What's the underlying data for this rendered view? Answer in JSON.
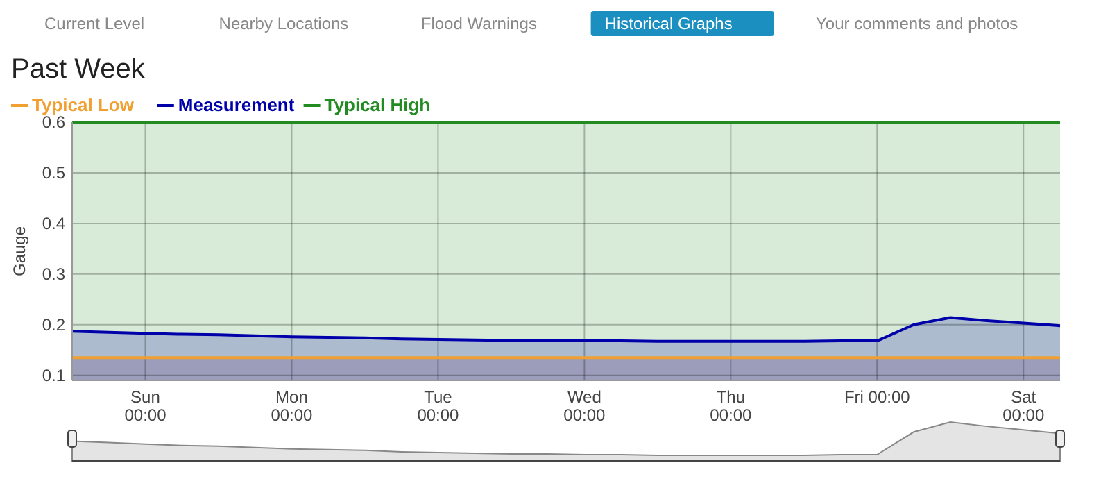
{
  "chart_data": {
    "type": "line",
    "title": "Past Week",
    "ylabel": "Gauge",
    "annotations": [
      "Current Level",
      "Nearby Locations",
      "Flood Warnings",
      "Historical Graphs",
      "Your comments and photos"
    ],
    "categories": [
      null,
      null,
      "Sun\n00:00",
      null,
      null,
      null,
      "Mon\n00:00",
      null,
      null,
      null,
      "Tue\n00:00",
      null,
      null,
      null,
      "Wed\n00:00",
      null,
      null,
      null,
      "Thu\n00:00",
      null,
      null,
      null,
      "Fri 00:00",
      null,
      null,
      null,
      "Sat\n00:00",
      null
    ],
    "ylim": [
      0.09,
      0.6
    ],
    "yticks": [
      0.1,
      0.2,
      0.3,
      0.4,
      0.5,
      0.6
    ],
    "grid": true,
    "legend": "top left",
    "bands": [
      {
        "axis": "y",
        "from": 0.135,
        "to": 0.6,
        "color": "#d8ebd8"
      },
      {
        "axis": "y",
        "from": 0.09,
        "to": 0.135,
        "color": "#c4c4c0"
      }
    ],
    "series": [
      {
        "name": "Typical Low",
        "color": "#f0a030",
        "values": [
          0.135,
          0.135,
          0.135,
          0.135,
          0.135,
          0.135,
          0.135,
          0.135,
          0.135,
          0.135,
          0.135,
          0.135,
          0.135,
          0.135,
          0.135,
          0.135,
          0.135,
          0.135,
          0.135,
          0.135,
          0.135,
          0.135,
          0.135,
          0.135,
          0.135,
          0.135,
          0.135,
          0.135
        ]
      },
      {
        "name": "Measurement",
        "type": "area",
        "color": "#0000aa",
        "values": [
          0.187,
          0.185,
          0.183,
          0.181,
          0.18,
          0.178,
          0.176,
          0.175,
          0.174,
          0.172,
          0.171,
          0.17,
          0.169,
          0.169,
          0.168,
          0.168,
          0.167,
          0.167,
          0.167,
          0.167,
          0.167,
          0.168,
          0.168,
          0.2,
          0.214,
          0.208,
          0.203,
          0.198
        ]
      },
      {
        "name": "Typical High",
        "color": "#228b22",
        "values": [
          0.6,
          0.6,
          0.6,
          0.6,
          0.6,
          0.6,
          0.6,
          0.6,
          0.6,
          0.6,
          0.6,
          0.6,
          0.6,
          0.6,
          0.6,
          0.6,
          0.6,
          0.6,
          0.6,
          0.6,
          0.6,
          0.6,
          0.6,
          0.6,
          0.6,
          0.6,
          0.6,
          0.6
        ]
      }
    ]
  }
}
